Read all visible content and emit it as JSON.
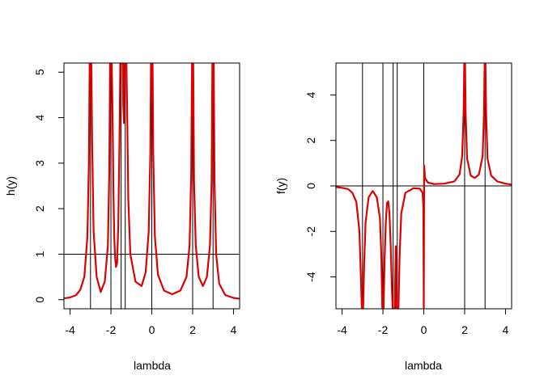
{
  "chart_data": [
    {
      "type": "line",
      "title": "",
      "xlabel": "lambda",
      "ylabel": "h(y)",
      "xlim": [
        -4.3,
        4.3
      ],
      "ylim": [
        -0.2,
        5.2
      ],
      "xticks": [
        -4,
        -2,
        0,
        2,
        4
      ],
      "yticks": [
        0,
        1,
        2,
        3,
        4,
        5
      ],
      "tick_labels_x": [
        "-4",
        "-2",
        "0",
        "2",
        "4"
      ],
      "tick_labels_y": [
        "0",
        "1",
        "2",
        "3",
        "4",
        "5"
      ],
      "vlines": [
        -3,
        -2,
        -1.5,
        -1.3,
        0,
        2,
        3
      ],
      "hlines": [
        1
      ],
      "line_color": "#dd0000",
      "ref_line_color": "#000000",
      "series": [
        {
          "x": [
            -4.3,
            -4.0,
            -3.7,
            -3.5,
            -3.3,
            -3.15,
            -3.08,
            -3.04,
            -3.02,
            -2.98,
            -2.96,
            -2.92,
            -2.85,
            -2.7,
            -2.5,
            -2.3,
            -2.15,
            -2.08,
            -2.04,
            -2.02,
            -1.98,
            -1.96,
            -1.92,
            -1.88,
            -1.84,
            -1.8,
            -1.75,
            -1.7,
            -1.64,
            -1.58,
            -1.54,
            -1.52,
            -1.5,
            -1.48,
            -1.45,
            -1.42,
            -1.4,
            -1.36,
            -1.34,
            -1.32,
            -1.28,
            -1.24,
            -1.2,
            -1.15,
            -1.05,
            -0.8,
            -0.5,
            -0.3,
            -0.15,
            -0.07,
            -0.04,
            -0.02,
            0.02,
            0.04,
            0.07,
            0.15,
            0.3,
            0.6,
            1.0,
            1.4,
            1.7,
            1.85,
            1.93,
            1.97,
            1.99,
            2.01,
            2.03,
            2.07,
            2.15,
            2.3,
            2.5,
            2.7,
            2.85,
            2.93,
            2.97,
            2.99,
            3.01,
            3.03,
            3.07,
            3.15,
            3.3,
            3.6,
            4.0,
            4.3
          ],
          "y": [
            0.03,
            0.05,
            0.1,
            0.22,
            0.5,
            1.4,
            3.0,
            5.2,
            5.2,
            5.2,
            5.2,
            3.5,
            1.5,
            0.5,
            0.17,
            0.4,
            1.2,
            2.8,
            5.2,
            5.2,
            5.2,
            5.2,
            4.0,
            2.4,
            1.4,
            0.95,
            0.72,
            0.8,
            1.6,
            3.5,
            5.2,
            5.2,
            5.2,
            5.2,
            5.2,
            5.2,
            4.3,
            3.88,
            5.2,
            5.2,
            5.2,
            5.2,
            4.0,
            2.2,
            1.0,
            0.4,
            0.3,
            0.6,
            1.5,
            3.2,
            5.2,
            5.2,
            5.2,
            5.2,
            3.2,
            1.4,
            0.55,
            0.2,
            0.12,
            0.2,
            0.5,
            1.2,
            2.8,
            5.2,
            5.2,
            5.2,
            5.2,
            2.6,
            1.2,
            0.5,
            0.3,
            0.5,
            1.2,
            2.6,
            5.2,
            5.2,
            5.2,
            5.2,
            2.6,
            1.0,
            0.35,
            0.1,
            0.04,
            0.02
          ]
        }
      ]
    },
    {
      "type": "line",
      "title": "",
      "xlabel": "lambda",
      "ylabel": "f(y)",
      "xlim": [
        -4.3,
        4.3
      ],
      "ylim": [
        -5.4,
        5.4
      ],
      "xticks": [
        -4,
        -2,
        0,
        2,
        4
      ],
      "yticks": [
        -4,
        -2,
        0,
        2,
        4
      ],
      "tick_labels_x": [
        "-4",
        "-2",
        "0",
        "2",
        "4"
      ],
      "tick_labels_y": [
        "-4",
        "-2",
        "0",
        "2",
        "4"
      ],
      "vlines": [
        -3,
        -2,
        -1.5,
        -1.3,
        0,
        2,
        3
      ],
      "hlines": [
        0
      ],
      "line_color": "#dd0000",
      "ref_line_color": "#000000",
      "series": [
        {
          "x": [
            -4.3,
            -4.0,
            -3.7,
            -3.5,
            -3.3,
            -3.15,
            -3.08,
            -3.03,
            -3.01,
            -2.99,
            -2.97,
            -2.92,
            -2.85,
            -2.7,
            -2.5,
            -2.3,
            -2.15,
            -2.08,
            -2.03,
            -2.01,
            -1.99,
            -1.97,
            -1.92,
            -1.86,
            -1.8,
            -1.74,
            -1.68,
            -1.62,
            -1.56,
            -1.52,
            -1.5,
            -1.48,
            -1.45,
            -1.42,
            -1.4,
            -1.37,
            -1.35,
            -1.33,
            -1.31,
            -1.28,
            -1.24,
            -1.18,
            -1.1,
            -0.9,
            -0.5,
            -0.2,
            -0.06,
            -0.02,
            0.0,
            0.02,
            0.06,
            0.2,
            0.5,
            1.0,
            1.5,
            1.75,
            1.88,
            1.95,
            1.98,
            2.0,
            2.02,
            2.05,
            2.12,
            2.3,
            2.5,
            2.7,
            2.88,
            2.95,
            2.98,
            3.0,
            3.02,
            3.05,
            3.12,
            3.3,
            3.6,
            4.0,
            4.3
          ],
          "y": [
            -0.05,
            -0.08,
            -0.14,
            -0.3,
            -0.7,
            -2.0,
            -4.0,
            -5.4,
            -5.4,
            -5.4,
            -5.4,
            -3.5,
            -1.6,
            -0.5,
            -0.22,
            -0.5,
            -1.4,
            -3.0,
            -5.4,
            -5.4,
            -5.4,
            -5.4,
            -3.2,
            -1.6,
            -0.75,
            -0.68,
            -1.2,
            -2.6,
            -4.5,
            -5.4,
            -5.4,
            -5.4,
            -5.4,
            -5.4,
            -4.1,
            -2.65,
            -3.8,
            -5.4,
            -5.4,
            -5.4,
            -5.4,
            -3.0,
            -1.2,
            -0.3,
            -0.1,
            -0.12,
            -0.3,
            -0.9,
            -5.4,
            0.9,
            0.35,
            0.15,
            0.08,
            0.1,
            0.2,
            0.5,
            1.3,
            3.2,
            5.4,
            5.4,
            5.4,
            3.2,
            1.2,
            0.45,
            0.35,
            0.5,
            1.3,
            3.2,
            5.4,
            5.4,
            5.4,
            3.2,
            1.2,
            0.45,
            0.2,
            0.1,
            0.06
          ]
        }
      ]
    }
  ]
}
